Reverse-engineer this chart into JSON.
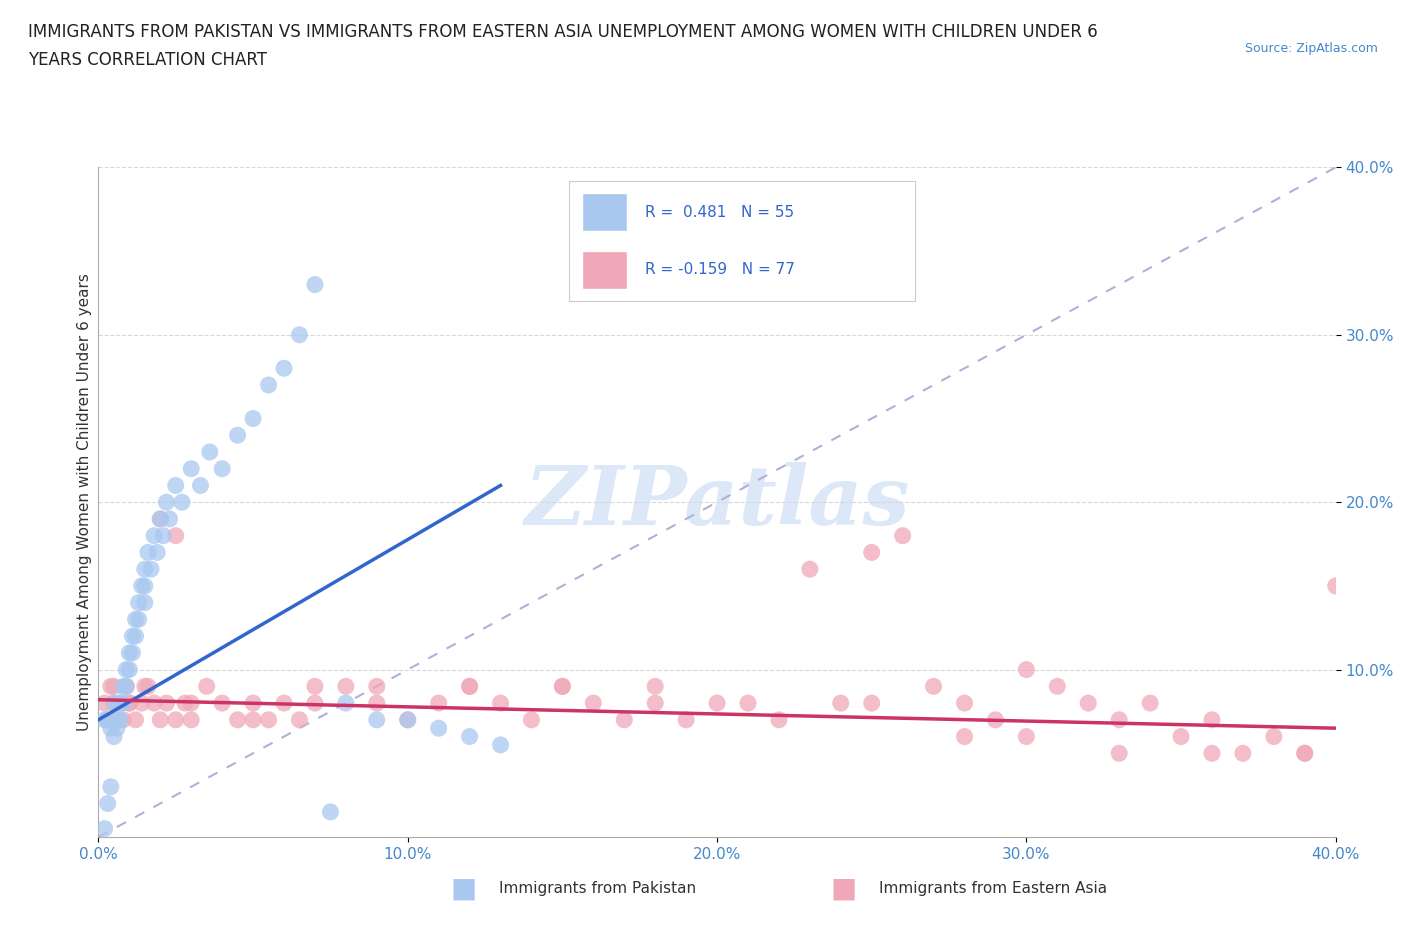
{
  "title_line1": "IMMIGRANTS FROM PAKISTAN VS IMMIGRANTS FROM EASTERN ASIA UNEMPLOYMENT AMONG WOMEN WITH CHILDREN UNDER 6",
  "title_line2": "YEARS CORRELATION CHART",
  "source_text": "Source: ZipAtlas.com",
  "ylabel": "Unemployment Among Women with Children Under 6 years",
  "xlabel_pakistan": "Immigrants from Pakistan",
  "xlabel_eastern_asia": "Immigrants from Eastern Asia",
  "r_pakistan": 0.481,
  "n_pakistan": 55,
  "r_eastern_asia": -0.159,
  "n_eastern_asia": 77,
  "xlim": [
    0.0,
    0.4
  ],
  "ylim": [
    0.0,
    0.4
  ],
  "x_ticks": [
    0.0,
    0.1,
    0.2,
    0.3,
    0.4
  ],
  "y_ticks": [
    0.1,
    0.2,
    0.3,
    0.4
  ],
  "x_tick_labels": [
    "0.0%",
    "10.0%",
    "20.0%",
    "30.0%",
    "40.0%"
  ],
  "y_tick_labels": [
    "10.0%",
    "20.0%",
    "30.0%",
    "40.0%"
  ],
  "pakistan_color": "#a8c8f0",
  "eastern_asia_color": "#f0a8b8",
  "pakistan_line_color": "#3366cc",
  "eastern_asia_line_color": "#cc3366",
  "diagonal_color": "#b0b0d8",
  "background_color": "#ffffff",
  "watermark_color": "#dce8f8",
  "grid_color": "#d8d8d8",
  "pakistan_scatter_x": [
    0.002,
    0.003,
    0.004,
    0.005,
    0.005,
    0.006,
    0.006,
    0.007,
    0.007,
    0.008,
    0.008,
    0.009,
    0.009,
    0.01,
    0.01,
    0.011,
    0.011,
    0.012,
    0.012,
    0.013,
    0.013,
    0.014,
    0.015,
    0.015,
    0.015,
    0.016,
    0.017,
    0.018,
    0.019,
    0.02,
    0.021,
    0.022,
    0.023,
    0.025,
    0.027,
    0.03,
    0.033,
    0.036,
    0.04,
    0.045,
    0.05,
    0.055,
    0.06,
    0.065,
    0.07,
    0.075,
    0.08,
    0.09,
    0.1,
    0.11,
    0.12,
    0.13,
    0.002,
    0.003,
    0.004
  ],
  "pakistan_scatter_y": [
    0.07,
    0.07,
    0.065,
    0.08,
    0.06,
    0.07,
    0.065,
    0.08,
    0.07,
    0.09,
    0.08,
    0.1,
    0.09,
    0.11,
    0.1,
    0.12,
    0.11,
    0.13,
    0.12,
    0.14,
    0.13,
    0.15,
    0.16,
    0.15,
    0.14,
    0.17,
    0.16,
    0.18,
    0.17,
    0.19,
    0.18,
    0.2,
    0.19,
    0.21,
    0.2,
    0.22,
    0.21,
    0.23,
    0.22,
    0.24,
    0.25,
    0.27,
    0.28,
    0.3,
    0.33,
    0.015,
    0.08,
    0.07,
    0.07,
    0.065,
    0.06,
    0.055,
    0.005,
    0.02,
    0.03
  ],
  "eastern_asia_scatter_x": [
    0.002,
    0.003,
    0.004,
    0.005,
    0.006,
    0.007,
    0.008,
    0.009,
    0.01,
    0.012,
    0.014,
    0.016,
    0.018,
    0.02,
    0.022,
    0.025,
    0.028,
    0.03,
    0.035,
    0.04,
    0.045,
    0.05,
    0.055,
    0.06,
    0.065,
    0.07,
    0.08,
    0.09,
    0.1,
    0.11,
    0.12,
    0.13,
    0.14,
    0.15,
    0.16,
    0.17,
    0.18,
    0.19,
    0.2,
    0.22,
    0.24,
    0.25,
    0.26,
    0.27,
    0.28,
    0.29,
    0.3,
    0.31,
    0.32,
    0.33,
    0.34,
    0.35,
    0.36,
    0.37,
    0.38,
    0.39,
    0.005,
    0.01,
    0.015,
    0.02,
    0.025,
    0.03,
    0.05,
    0.07,
    0.09,
    0.12,
    0.15,
    0.18,
    0.21,
    0.23,
    0.25,
    0.28,
    0.3,
    0.33,
    0.36,
    0.39,
    0.4
  ],
  "eastern_asia_scatter_y": [
    0.08,
    0.07,
    0.09,
    0.08,
    0.07,
    0.08,
    0.07,
    0.09,
    0.08,
    0.07,
    0.08,
    0.09,
    0.08,
    0.07,
    0.08,
    0.07,
    0.08,
    0.07,
    0.09,
    0.08,
    0.07,
    0.08,
    0.07,
    0.08,
    0.07,
    0.08,
    0.09,
    0.08,
    0.07,
    0.08,
    0.09,
    0.08,
    0.07,
    0.09,
    0.08,
    0.07,
    0.08,
    0.07,
    0.08,
    0.07,
    0.08,
    0.17,
    0.18,
    0.09,
    0.08,
    0.07,
    0.1,
    0.09,
    0.08,
    0.07,
    0.08,
    0.06,
    0.07,
    0.05,
    0.06,
    0.05,
    0.09,
    0.08,
    0.09,
    0.19,
    0.18,
    0.08,
    0.07,
    0.09,
    0.09,
    0.09,
    0.09,
    0.09,
    0.08,
    0.16,
    0.08,
    0.06,
    0.06,
    0.05,
    0.05,
    0.05,
    0.15
  ]
}
